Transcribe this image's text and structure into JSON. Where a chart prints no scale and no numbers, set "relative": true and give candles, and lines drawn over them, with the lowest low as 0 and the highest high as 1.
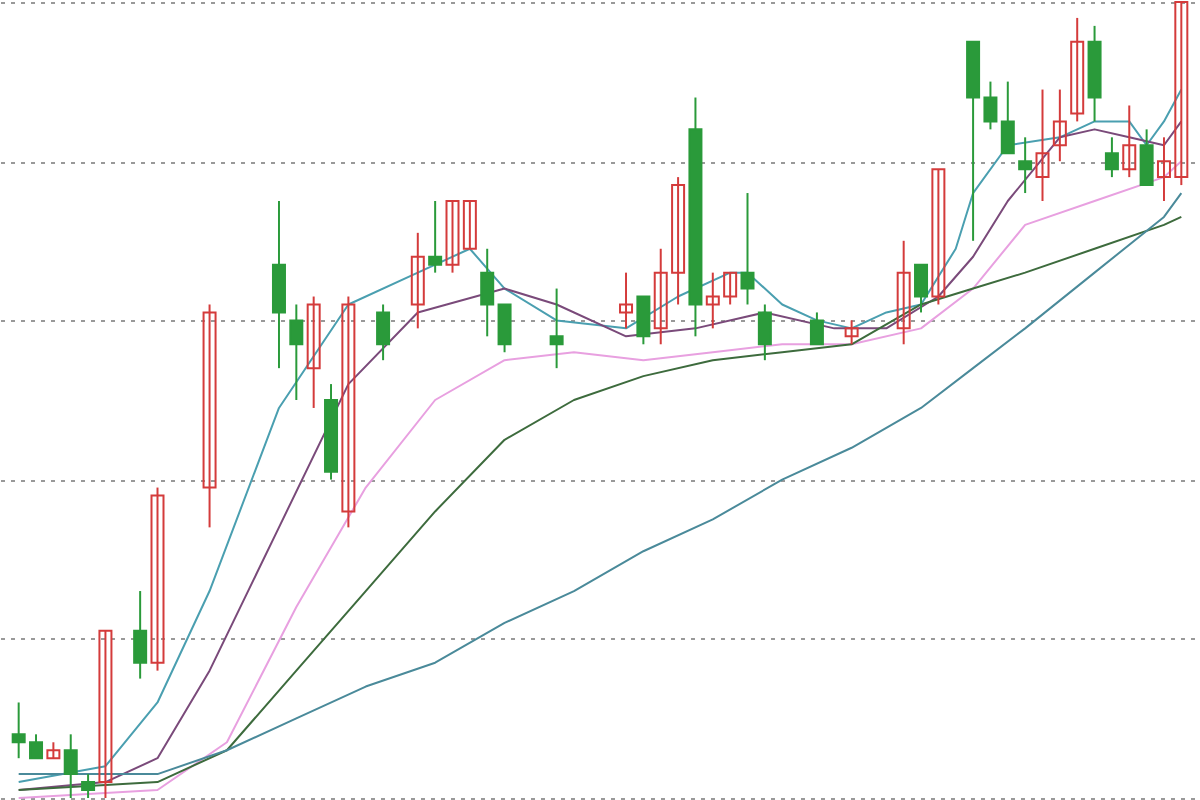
{
  "chart_data": {
    "type": "candlestick",
    "relative": true,
    "grid": "y",
    "categories": [
      null,
      null,
      null,
      null,
      null,
      null,
      null,
      null,
      null,
      null,
      null,
      null,
      null,
      null,
      null,
      null,
      null,
      null,
      null,
      null,
      null,
      null,
      null,
      null,
      null,
      null,
      null,
      null,
      null,
      null,
      null,
      null,
      null,
      null,
      null,
      null,
      null,
      null,
      null,
      null,
      null,
      null,
      null,
      null,
      null,
      null,
      null,
      null,
      null,
      null,
      null,
      null,
      null,
      null,
      null,
      null,
      null,
      null,
      null,
      null,
      null,
      null,
      null,
      null,
      null,
      null,
      null,
      null
    ],
    "ohlc": [
      [
        0.08,
        0.12,
        0.05,
        0.07
      ],
      [
        0.07,
        0.08,
        0.05,
        0.05
      ],
      [
        0.05,
        0.07,
        0.05,
        0.06
      ],
      [
        0.06,
        0.08,
        0,
        0.03
      ],
      [
        0.02,
        0.03,
        0,
        0.01
      ],
      [
        0.02,
        0.21,
        0,
        0.21
      ],
      null,
      [
        0.21,
        0.26,
        0.15,
        0.17
      ],
      [
        0.17,
        0.39,
        0.16,
        0.38
      ],
      null,
      null,
      [
        0.39,
        0.62,
        0.34,
        0.61
      ],
      null,
      null,
      null,
      [
        0.67,
        0.75,
        0.54,
        0.61
      ],
      [
        0.6,
        0.62,
        0.5,
        0.57
      ],
      [
        0.54,
        0.63,
        0.49,
        0.62
      ],
      [
        0.5,
        0.52,
        0.4,
        0.41
      ],
      [
        0.36,
        0.63,
        0.34,
        0.62
      ],
      null,
      [
        0.61,
        0.62,
        0.55,
        0.57
      ],
      null,
      [
        0.62,
        0.71,
        0.59,
        0.68
      ],
      [
        0.68,
        0.75,
        0.66,
        0.67
      ],
      [
        0.67,
        0.75,
        0.66,
        0.75
      ],
      [
        0.69,
        0.75,
        0.69,
        0.75
      ],
      [
        0.66,
        0.69,
        0.58,
        0.62
      ],
      [
        0.62,
        0.62,
        0.56,
        0.57
      ],
      null,
      null,
      [
        0.58,
        0.64,
        0.54,
        0.57
      ],
      null,
      null,
      null,
      [
        0.61,
        0.66,
        0.59,
        0.62
      ],
      [
        0.63,
        0.63,
        0.57,
        0.58
      ],
      [
        0.59,
        0.69,
        0.57,
        0.66
      ],
      [
        0.66,
        0.78,
        0.62,
        0.77
      ],
      [
        0.84,
        0.88,
        0.58,
        0.62
      ],
      [
        0.62,
        0.66,
        0.59,
        0.63
      ],
      [
        0.63,
        0.66,
        0.62,
        0.66
      ],
      [
        0.66,
        0.76,
        0.62,
        0.64
      ],
      [
        0.61,
        0.62,
        0.55,
        0.57
      ],
      null,
      null,
      [
        0.6,
        0.61,
        0.57,
        0.57
      ],
      null,
      [
        0.58,
        0.6,
        0.57,
        0.59
      ],
      null,
      null,
      [
        0.59,
        0.7,
        0.57,
        0.66
      ],
      [
        0.67,
        0.67,
        0.61,
        0.63
      ],
      [
        0.63,
        0.79,
        0.62,
        0.79
      ],
      null,
      [
        0.95,
        0.95,
        0.7,
        0.88
      ],
      [
        0.88,
        0.9,
        0.84,
        0.85
      ],
      [
        0.85,
        0.9,
        0.81,
        0.81
      ],
      [
        0.8,
        0.83,
        0.76,
        0.79
      ],
      [
        0.78,
        0.89,
        0.75,
        0.81
      ],
      [
        0.82,
        0.89,
        0.8,
        0.85
      ],
      [
        0.86,
        0.98,
        0.85,
        0.95
      ],
      [
        0.95,
        0.97,
        0.85,
        0.88
      ],
      [
        0.81,
        0.83,
        0.78,
        0.79
      ],
      [
        0.79,
        0.87,
        0.78,
        0.82
      ],
      [
        0.82,
        0.84,
        0.77,
        0.77
      ],
      [
        0.78,
        0.83,
        0.75,
        0.8
      ],
      [
        0.78,
        1,
        0.77,
        1
      ]
    ],
    "series": [
      {
        "type": "line",
        "color": "#4a9fb0",
        "values": [
          0.02,
          null,
          null,
          null,
          null,
          0.04,
          null,
          null,
          0.12,
          null,
          null,
          0.26,
          null,
          null,
          null,
          0.49,
          null,
          null,
          null,
          0.62,
          null,
          null,
          null,
          0.66,
          null,
          null,
          0.69,
          null,
          0.64,
          null,
          null,
          0.6,
          null,
          null,
          null,
          0.59,
          null,
          null,
          0.63,
          null,
          null,
          0.66,
          0.66,
          null,
          0.62,
          null,
          0.6,
          null,
          0.59,
          null,
          0.61,
          null,
          0.62,
          null,
          0.69,
          0.76,
          null,
          0.82,
          null,
          null,
          0.83,
          null,
          0.85,
          null,
          0.85,
          0.82,
          0.85,
          0.89
        ]
      },
      {
        "type": "line",
        "color": "#7a4a7a",
        "values": [
          0.01,
          null,
          null,
          null,
          null,
          0.02,
          null,
          null,
          0.05,
          null,
          null,
          0.16,
          null,
          null,
          null,
          0.34,
          null,
          null,
          null,
          0.52,
          null,
          null,
          null,
          0.61,
          null,
          null,
          null,
          null,
          0.64,
          null,
          null,
          0.62,
          null,
          null,
          null,
          0.58,
          null,
          null,
          null,
          0.59,
          null,
          null,
          null,
          0.61,
          null,
          null,
          null,
          0.59,
          null,
          null,
          0.59,
          null,
          null,
          0.63,
          null,
          0.68,
          null,
          0.75,
          null,
          null,
          0.83,
          null,
          0.84,
          null,
          0.83,
          null,
          0.82,
          0.85
        ]
      },
      {
        "type": "line",
        "color": "#e8a0e0",
        "values": [
          0,
          null,
          null,
          null,
          null,
          null,
          null,
          null,
          0.01,
          null,
          null,
          null,
          0.07,
          null,
          null,
          null,
          0.24,
          null,
          null,
          null,
          0.39,
          null,
          null,
          null,
          0.5,
          null,
          null,
          null,
          0.55,
          null,
          null,
          null,
          0.56,
          null,
          null,
          null,
          0.55,
          null,
          null,
          null,
          0.56,
          null,
          null,
          null,
          0.57,
          null,
          null,
          null,
          0.57,
          null,
          null,
          null,
          0.59,
          null,
          null,
          0.64,
          null,
          null,
          0.72,
          null,
          null,
          null,
          0.75,
          null,
          null,
          null,
          0.78,
          0.8
        ]
      },
      {
        "type": "line",
        "color": "#3d6b3d",
        "values": [
          0.01,
          null,
          null,
          null,
          null,
          null,
          null,
          null,
          0.02,
          null,
          null,
          null,
          0.06,
          null,
          null,
          null,
          0.16,
          null,
          null,
          null,
          0.26,
          null,
          null,
          null,
          0.36,
          null,
          null,
          null,
          0.45,
          null,
          null,
          null,
          0.5,
          null,
          null,
          null,
          0.53,
          null,
          null,
          null,
          0.55,
          null,
          null,
          null,
          0.56,
          null,
          null,
          null,
          0.57,
          null,
          null,
          null,
          0.62,
          null,
          null,
          0.64,
          null,
          null,
          0.66,
          null,
          null,
          null,
          0.69,
          null,
          null,
          null,
          0.72,
          0.73
        ]
      },
      {
        "type": "line",
        "color": "#4a8a9a",
        "values": [
          0.03,
          null,
          null,
          null,
          null,
          0.03,
          null,
          null,
          0.03,
          null,
          null,
          null,
          0.06,
          null,
          null,
          null,
          0.1,
          null,
          null,
          null,
          0.14,
          null,
          null,
          null,
          0.17,
          null,
          null,
          null,
          0.22,
          null,
          null,
          null,
          0.26,
          null,
          null,
          null,
          0.31,
          null,
          null,
          null,
          0.35,
          null,
          null,
          null,
          0.4,
          null,
          null,
          null,
          0.44,
          null,
          null,
          null,
          0.49,
          null,
          null,
          0.54,
          null,
          null,
          0.59,
          null,
          null,
          null,
          0.66,
          null,
          null,
          null,
          0.73,
          0.76
        ]
      }
    ]
  }
}
